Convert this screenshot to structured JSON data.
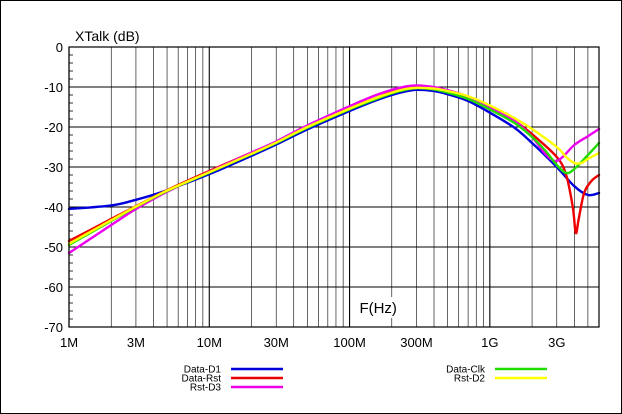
{
  "chart_data": {
    "type": "line",
    "ylabel": "XTalk (dB)",
    "xlabel": "F(Hz)",
    "x_scale": "log",
    "xlim": [
      1000000,
      6000000000
    ],
    "ylim": [
      -70,
      0
    ],
    "grid": true,
    "x_ticks": [
      {
        "value": 1000000,
        "label": "1M"
      },
      {
        "value": 3000000,
        "label": "3M"
      },
      {
        "value": 10000000,
        "label": "10M"
      },
      {
        "value": 30000000,
        "label": "30M"
      },
      {
        "value": 100000000,
        "label": "100M"
      },
      {
        "value": 300000000,
        "label": "300M"
      },
      {
        "value": 1000000000,
        "label": "1G"
      },
      {
        "value": 3000000000,
        "label": "3G"
      }
    ],
    "y_ticks": [
      {
        "value": 0,
        "label": "0"
      },
      {
        "value": -10,
        "label": "-10"
      },
      {
        "value": -20,
        "label": "-20"
      },
      {
        "value": -30,
        "label": "-30"
      },
      {
        "value": -40,
        "label": "-40"
      },
      {
        "value": -50,
        "label": "-50"
      },
      {
        "value": -60,
        "label": "-60"
      },
      {
        "value": -70,
        "label": "-70"
      }
    ],
    "series": [
      {
        "name": "Data-D1",
        "color": "#0000dd",
        "points": [
          [
            1000000,
            -40.5
          ],
          [
            2000000,
            -39.6
          ],
          [
            3000000,
            -38.2
          ],
          [
            5000000,
            -35.8
          ],
          [
            10000000,
            -31.8
          ],
          [
            20000000,
            -27.2
          ],
          [
            30000000,
            -24.4
          ],
          [
            50000000,
            -20.6
          ],
          [
            100000000,
            -16.0
          ],
          [
            150000000,
            -13.5
          ],
          [
            200000000,
            -12.0
          ],
          [
            250000000,
            -11.1
          ],
          [
            300000000,
            -10.7
          ],
          [
            400000000,
            -11.0
          ],
          [
            500000000,
            -11.8
          ],
          [
            700000000,
            -13.5
          ],
          [
            1000000000,
            -16.4
          ],
          [
            1500000000,
            -20.2
          ],
          [
            2000000000,
            -24.0
          ],
          [
            3000000000,
            -30.0
          ],
          [
            4000000000,
            -34.8
          ],
          [
            5000000000,
            -37.0
          ],
          [
            6000000000,
            -36.5
          ]
        ]
      },
      {
        "name": "Data-Rst",
        "color": "#ee0000",
        "points": [
          [
            1000000,
            -48.5
          ],
          [
            2000000,
            -43.0
          ],
          [
            3000000,
            -39.8
          ],
          [
            5000000,
            -35.8
          ],
          [
            10000000,
            -31.0
          ],
          [
            20000000,
            -26.4
          ],
          [
            30000000,
            -23.7
          ],
          [
            50000000,
            -19.9
          ],
          [
            100000000,
            -15.3
          ],
          [
            150000000,
            -12.9
          ],
          [
            200000000,
            -11.3
          ],
          [
            250000000,
            -10.4
          ],
          [
            300000000,
            -10.1
          ],
          [
            400000000,
            -10.5
          ],
          [
            500000000,
            -11.3
          ],
          [
            700000000,
            -12.8
          ],
          [
            1000000000,
            -15.3
          ],
          [
            1500000000,
            -18.5
          ],
          [
            2000000000,
            -21.8
          ],
          [
            3000000000,
            -27.5
          ],
          [
            3500000000,
            -32.0
          ],
          [
            3900000000,
            -40.0
          ],
          [
            4100000000,
            -46.5
          ],
          [
            4300000000,
            -43.0
          ],
          [
            4700000000,
            -36.5
          ],
          [
            5300000000,
            -33.5
          ],
          [
            6000000000,
            -32.0
          ]
        ]
      },
      {
        "name": "Rst-D3",
        "color": "#ee00ee",
        "points": [
          [
            1000000,
            -51.5
          ],
          [
            2000000,
            -44.5
          ],
          [
            3000000,
            -40.5
          ],
          [
            5000000,
            -36.2
          ],
          [
            10000000,
            -31.2
          ],
          [
            20000000,
            -26.4
          ],
          [
            30000000,
            -23.6
          ],
          [
            50000000,
            -19.6
          ],
          [
            100000000,
            -14.8
          ],
          [
            150000000,
            -12.2
          ],
          [
            200000000,
            -10.7
          ],
          [
            250000000,
            -9.9
          ],
          [
            300000000,
            -9.6
          ],
          [
            400000000,
            -10.0
          ],
          [
            500000000,
            -10.8
          ],
          [
            700000000,
            -12.4
          ],
          [
            1000000000,
            -15.0
          ],
          [
            1500000000,
            -18.5
          ],
          [
            2000000000,
            -22.5
          ],
          [
            2500000000,
            -26.8
          ],
          [
            2900000000,
            -28.5
          ],
          [
            3300000000,
            -27.5
          ],
          [
            4000000000,
            -24.5
          ],
          [
            5000000000,
            -22.3
          ],
          [
            6000000000,
            -20.5
          ]
        ]
      },
      {
        "name": "Data-Clk",
        "color": "#22dd00",
        "points": [
          [
            1000000,
            -49.5
          ],
          [
            2000000,
            -43.5
          ],
          [
            3000000,
            -40.0
          ],
          [
            5000000,
            -36.0
          ],
          [
            10000000,
            -31.4
          ],
          [
            20000000,
            -26.8
          ],
          [
            30000000,
            -24.0
          ],
          [
            50000000,
            -20.2
          ],
          [
            100000000,
            -15.6
          ],
          [
            150000000,
            -13.2
          ],
          [
            200000000,
            -11.6
          ],
          [
            250000000,
            -10.7
          ],
          [
            300000000,
            -10.3
          ],
          [
            400000000,
            -10.6
          ],
          [
            500000000,
            -11.4
          ],
          [
            700000000,
            -13.0
          ],
          [
            1000000000,
            -15.6
          ],
          [
            1500000000,
            -19.0
          ],
          [
            2000000000,
            -22.5
          ],
          [
            2500000000,
            -26.0
          ],
          [
            3000000000,
            -29.5
          ],
          [
            3500000000,
            -31.5
          ],
          [
            4000000000,
            -30.5
          ],
          [
            5000000000,
            -27.0
          ],
          [
            6000000000,
            -24.0
          ]
        ]
      },
      {
        "name": "Rst-D2",
        "color": "#ffff00",
        "points": [
          [
            1000000,
            -49.2
          ],
          [
            2000000,
            -43.3
          ],
          [
            3000000,
            -39.9
          ],
          [
            5000000,
            -35.9
          ],
          [
            10000000,
            -31.3
          ],
          [
            20000000,
            -26.7
          ],
          [
            30000000,
            -23.9
          ],
          [
            50000000,
            -20.0
          ],
          [
            100000000,
            -15.4
          ],
          [
            150000000,
            -12.9
          ],
          [
            200000000,
            -11.4
          ],
          [
            250000000,
            -10.5
          ],
          [
            300000000,
            -10.2
          ],
          [
            400000000,
            -10.4
          ],
          [
            500000000,
            -11.0
          ],
          [
            700000000,
            -12.3
          ],
          [
            1000000000,
            -14.6
          ],
          [
            1500000000,
            -17.8
          ],
          [
            2000000000,
            -20.5
          ],
          [
            3000000000,
            -25.0
          ],
          [
            3500000000,
            -27.5
          ],
          [
            4000000000,
            -29.0
          ],
          [
            4500000000,
            -29.0
          ],
          [
            5000000000,
            -28.0
          ],
          [
            6000000000,
            -26.5
          ]
        ]
      }
    ]
  }
}
